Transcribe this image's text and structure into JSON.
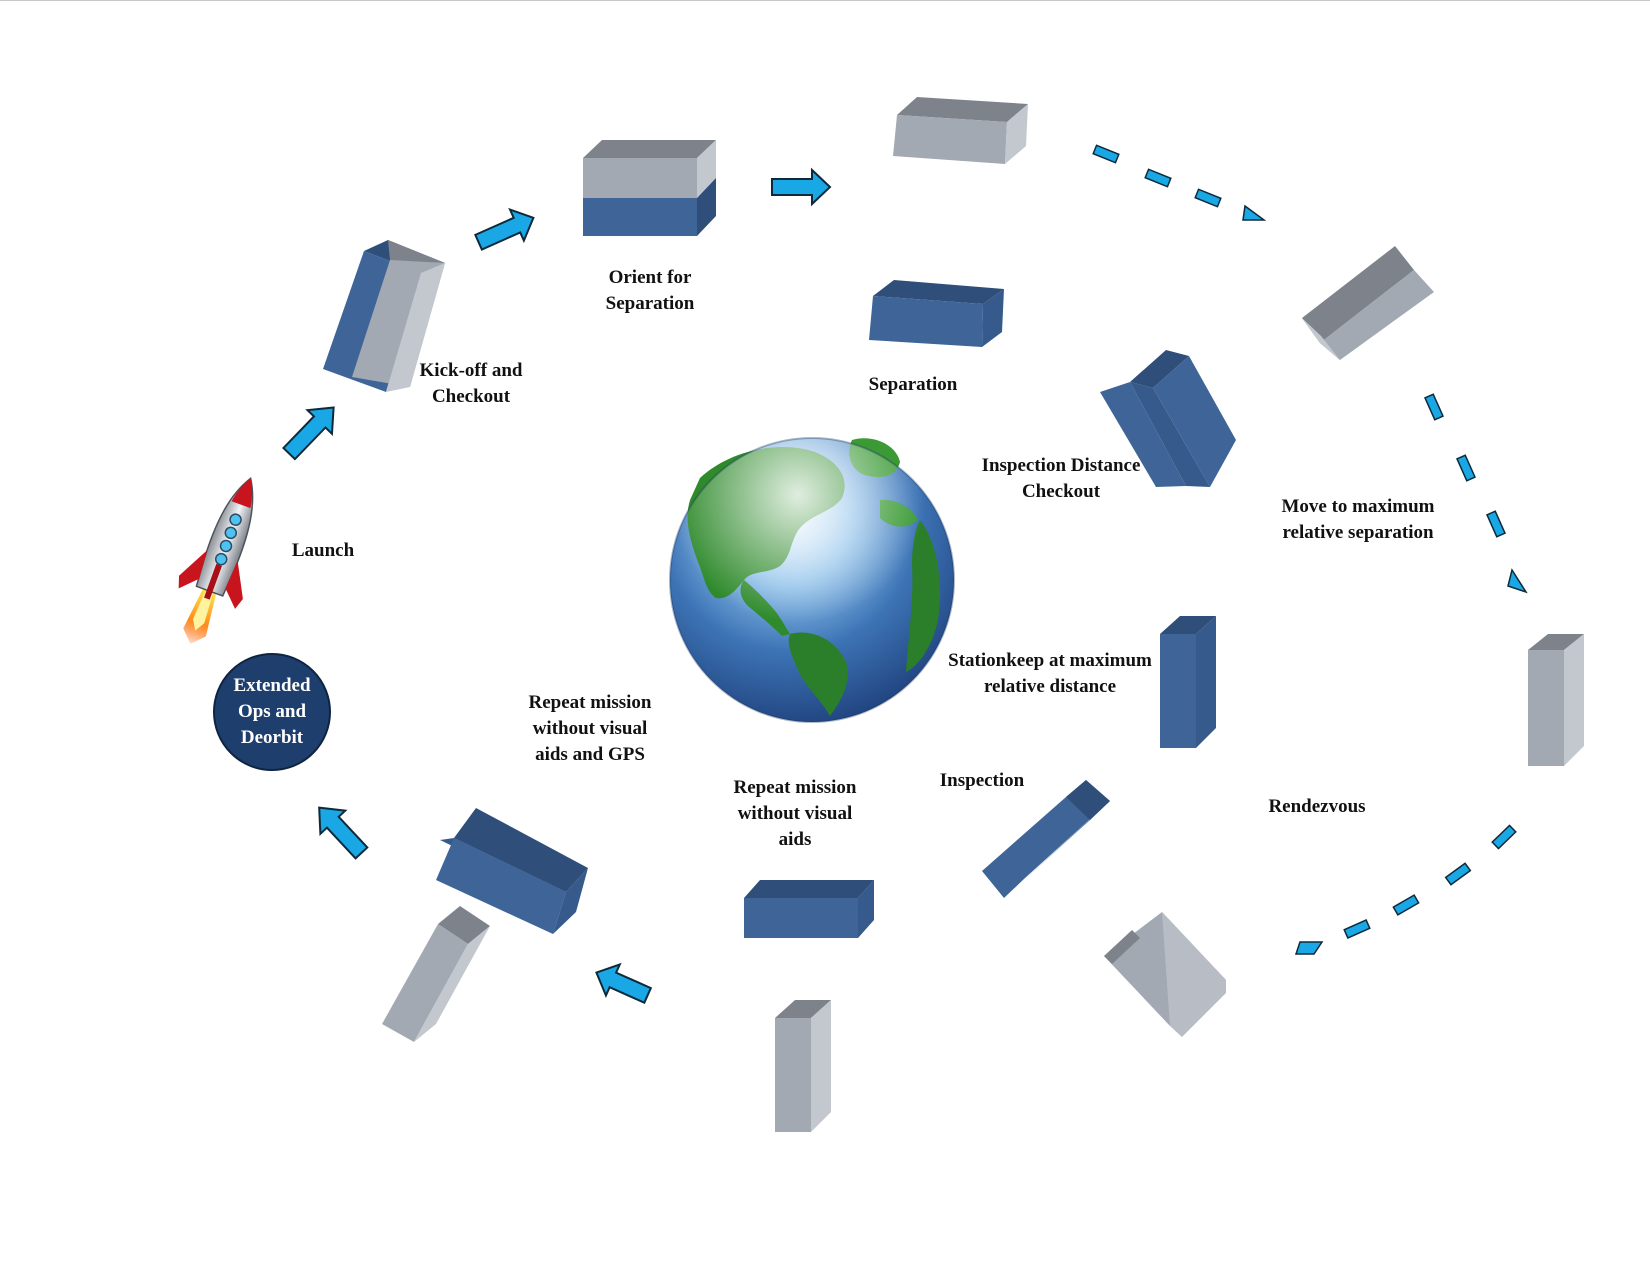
{
  "diagram": {
    "steps": {
      "launch": {
        "lines": [
          "Launch"
        ]
      },
      "kickoff": {
        "lines": [
          "Kick-off and",
          "Checkout"
        ]
      },
      "orient": {
        "lines": [
          "Orient for",
          "Separation"
        ]
      },
      "separation": {
        "lines": [
          "Separation"
        ]
      },
      "inspection_distance": {
        "lines": [
          "Inspection Distance",
          "Checkout"
        ]
      },
      "move_max": {
        "lines": [
          "Move to maximum",
          "relative separation"
        ]
      },
      "stationkeep": {
        "lines": [
          "Stationkeep at maximum",
          "relative distance"
        ]
      },
      "rendezvous": {
        "lines": [
          "Rendezvous"
        ]
      },
      "inspection": {
        "lines": [
          "Inspection"
        ]
      },
      "repeat_no_visual": {
        "lines": [
          "Repeat mission",
          "without visual",
          "aids"
        ]
      },
      "repeat_no_visual_gps": {
        "lines": [
          "Repeat mission",
          "without visual",
          "aids and GPS"
        ]
      },
      "extended_ops": {
        "lines": [
          "Extended",
          "Ops and",
          "Deorbit"
        ]
      }
    },
    "colors": {
      "arrow_fill": "#1aa7e6",
      "arrow_stroke": "#0d2a3a",
      "block_blue": "#3f6598",
      "block_blue_dark": "#2f4f7a",
      "block_grey": "#a3a9b3",
      "block_grey_light": "#c3c8cf",
      "block_grey_dark": "#7e838b",
      "end_circle": "#1e3f6e"
    },
    "icons": {
      "globe": "earth-globe-icon",
      "rocket": "rocket-icon"
    }
  }
}
